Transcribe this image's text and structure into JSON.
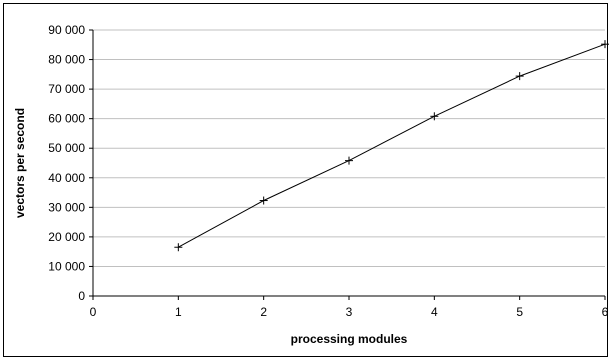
{
  "chart_data": {
    "type": "line",
    "title": "",
    "xlabel": "processing modules",
    "ylabel": "vectors per second",
    "xlim": [
      0,
      6
    ],
    "ylim": [
      0,
      90000
    ],
    "x_ticks": [
      0,
      1,
      2,
      3,
      4,
      5,
      6
    ],
    "y_ticks": [
      0,
      10000,
      20000,
      30000,
      40000,
      50000,
      60000,
      70000,
      80000,
      90000
    ],
    "x_tick_labels": [
      "0",
      "1",
      "2",
      "3",
      "4",
      "5",
      "6"
    ],
    "y_tick_labels": [
      "0",
      "10 000",
      "20 000",
      "30 000",
      "40 000",
      "50 000",
      "60 000",
      "70 000",
      "80 000",
      "90 000"
    ],
    "grid": "horizontal",
    "legend": "none",
    "marker": "plus",
    "series": [
      {
        "x": [
          1,
          2,
          3,
          4,
          5,
          6
        ],
        "y": [
          16500,
          32300,
          45800,
          60800,
          74400,
          85200
        ]
      }
    ],
    "colors": {
      "line": "#000000",
      "grid": "#c0c0c0",
      "background": "#ffffff"
    }
  }
}
